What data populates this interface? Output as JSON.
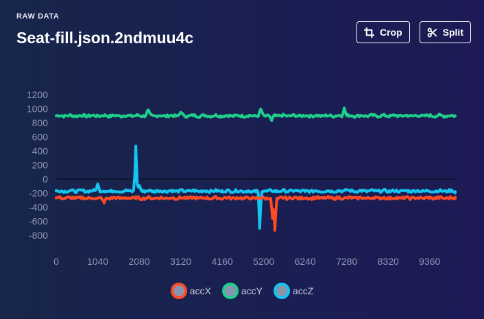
{
  "header": {
    "eyebrow": "RAW DATA",
    "title": "Seat-fill.json.2ndmuu4c"
  },
  "toolbar": {
    "crop_label": "Crop",
    "split_label": "Split"
  },
  "colors": {
    "accX": "#ff4a24",
    "accY": "#1fd08a",
    "accZ": "#14c6ef"
  },
  "chart_data": {
    "type": "line",
    "title": "",
    "xlabel": "",
    "ylabel": "",
    "xlim": [
      0,
      10000
    ],
    "ylim": [
      -800,
      1200
    ],
    "x_ticks": [
      0,
      1040,
      2080,
      3120,
      4160,
      5200,
      6240,
      7280,
      8320,
      9360
    ],
    "y_ticks": [
      1200,
      1000,
      800,
      600,
      400,
      200,
      0,
      -200,
      -400,
      -600,
      -800
    ],
    "series": [
      {
        "name": "accX",
        "baseline": -270,
        "x": [
          0,
          1000,
          1200,
          2100,
          2500,
          4900,
          5420,
          5480,
          5550,
          6240,
          8000,
          10000
        ],
        "values": [
          -270,
          -280,
          -340,
          -280,
          -270,
          -280,
          -560,
          -730,
          -290,
          -270,
          -260,
          -260
        ]
      },
      {
        "name": "accY",
        "baseline": 900,
        "x": [
          0,
          2300,
          3120,
          5130,
          5400,
          7220,
          10000
        ],
        "values": [
          900,
          980,
          950,
          990,
          830,
          1010,
          900
        ]
      },
      {
        "name": "accZ",
        "baseline": -170,
        "x": [
          0,
          1040,
          1995,
          2080,
          2500,
          4900,
          5100,
          5200,
          6240,
          7280,
          10000
        ],
        "values": [
          -170,
          -70,
          470,
          -90,
          -170,
          -190,
          -700,
          -170,
          -180,
          -150,
          -180
        ]
      }
    ]
  }
}
